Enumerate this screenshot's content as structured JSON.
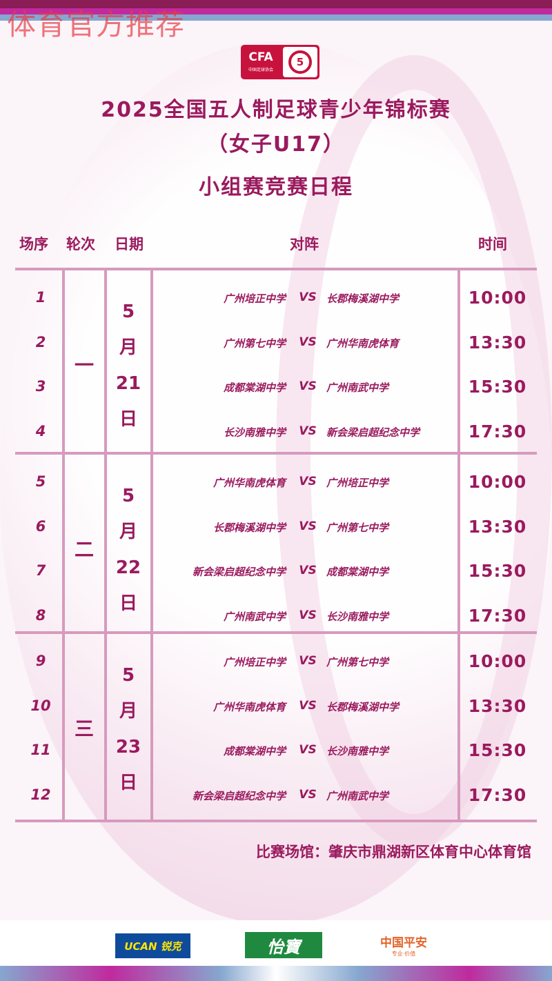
{
  "watermark": "体育官方推荐",
  "logo": {
    "cfa": "CFA",
    "cfa_sub": "中国足球协会",
    "futsal": "5"
  },
  "title": {
    "line1": "2025全国五人制足球青少年锦标赛",
    "line2": "（女子U17）",
    "subtitle": "小组赛竞赛日程"
  },
  "table": {
    "headers": {
      "match_no": "场序",
      "round": "轮次",
      "date": "日期",
      "fixture": "对阵",
      "time": "时间"
    },
    "vs": "VS",
    "groups": [
      {
        "round": "一",
        "date": [
          "5",
          "月",
          "21",
          "日"
        ],
        "matches": [
          {
            "no": "1",
            "home": "广州培正中学",
            "away": "长郡梅溪湖中学",
            "time": "10:00"
          },
          {
            "no": "2",
            "home": "广州第七中学",
            "away": "广州华南虎体育",
            "time": "13:30"
          },
          {
            "no": "3",
            "home": "成都棠湖中学",
            "away": "广州南武中学",
            "time": "15:30"
          },
          {
            "no": "4",
            "home": "长沙南雅中学",
            "away": "新会梁启超纪念中学",
            "time": "17:30"
          }
        ]
      },
      {
        "round": "二",
        "date": [
          "5",
          "月",
          "22",
          "日"
        ],
        "matches": [
          {
            "no": "5",
            "home": "广州华南虎体育",
            "away": "广州培正中学",
            "time": "10:00"
          },
          {
            "no": "6",
            "home": "长郡梅溪湖中学",
            "away": "广州第七中学",
            "time": "13:30"
          },
          {
            "no": "7",
            "home": "新会梁启超纪念中学",
            "away": "成都棠湖中学",
            "time": "15:30"
          },
          {
            "no": "8",
            "home": "广州南武中学",
            "away": "长沙南雅中学",
            "time": "17:30"
          }
        ]
      },
      {
        "round": "三",
        "date": [
          "5",
          "月",
          "23",
          "日"
        ],
        "matches": [
          {
            "no": "9",
            "home": "广州培正中学",
            "away": "广州第七中学",
            "time": "10:00"
          },
          {
            "no": "10",
            "home": "广州华南虎体育",
            "away": "长郡梅溪湖中学",
            "time": "13:30"
          },
          {
            "no": "11",
            "home": "成都棠湖中学",
            "away": "长沙南雅中学",
            "time": "15:30"
          },
          {
            "no": "12",
            "home": "新会梁启超纪念中学",
            "away": "广州南武中学",
            "time": "17:30"
          }
        ]
      }
    ]
  },
  "venue": "比赛场馆：肇庆市鼎湖新区体育中心体育馆",
  "sponsors": [
    {
      "name": "UCAN 锐克"
    },
    {
      "name": "怡寶"
    },
    {
      "name": "中国平安",
      "tagline": "专业·价值"
    }
  ],
  "colors": {
    "text": "#9a1a5e",
    "lines": "#d69abd",
    "brand_red": "#c8123e"
  }
}
